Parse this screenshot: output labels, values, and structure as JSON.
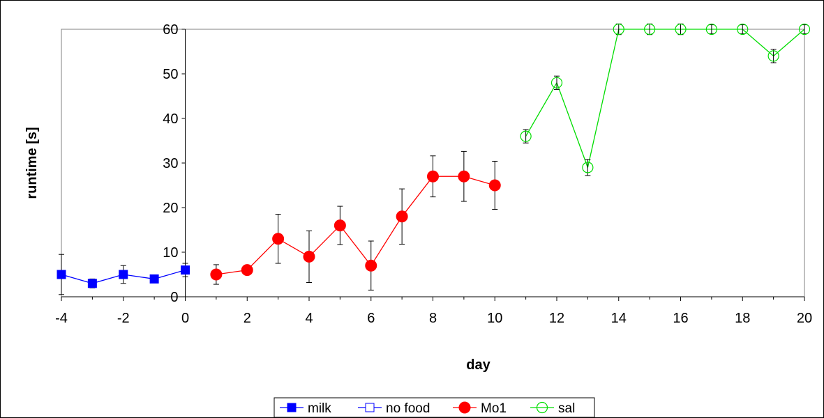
{
  "chart_data": {
    "type": "line",
    "title": "",
    "xlabel": "day",
    "ylabel": "runtime [s]",
    "xlim": [
      -4,
      20
    ],
    "ylim": [
      0,
      60
    ],
    "x_ticks": [
      "-4",
      "-2",
      "0",
      "2",
      "4",
      "6",
      "8",
      "10",
      "12",
      "14",
      "16",
      "18",
      "20"
    ],
    "y_ticks": [
      "0",
      "10",
      "20",
      "30",
      "40",
      "50",
      "60"
    ],
    "grid": false,
    "legend_position": "bottom",
    "series": [
      {
        "name": "milk",
        "color": "#0000ff",
        "marker": "filled-square",
        "points": [
          {
            "x": -4,
            "y": 5,
            "err": 4.5
          },
          {
            "x": -3,
            "y": 3,
            "err": 1
          },
          {
            "x": -2,
            "y": 5,
            "err": 2
          },
          {
            "x": -1,
            "y": 4,
            "err": 0
          },
          {
            "x": 0,
            "y": 6,
            "err": 1.5
          }
        ]
      },
      {
        "name": "no food",
        "color": "#0000ff",
        "marker": "open-square",
        "points": []
      },
      {
        "name": "Mo1",
        "color": "#ff0000",
        "marker": "filled-circle",
        "points": [
          {
            "x": 1,
            "y": 5,
            "err": 2.2
          },
          {
            "x": 2,
            "y": 6,
            "err": 0.8
          },
          {
            "x": 3,
            "y": 13,
            "err": 5.5
          },
          {
            "x": 4,
            "y": 9,
            "err": 5.8
          },
          {
            "x": 5,
            "y": 16,
            "err": 4.3
          },
          {
            "x": 6,
            "y": 7,
            "err": 5.5
          },
          {
            "x": 7,
            "y": 18,
            "err": 6.2
          },
          {
            "x": 8,
            "y": 27,
            "err": 4.6
          },
          {
            "x": 9,
            "y": 27,
            "err": 5.6
          },
          {
            "x": 10,
            "y": 25,
            "err": 5.4
          }
        ]
      },
      {
        "name": "sal",
        "color": "#00dd00",
        "marker": "open-circle",
        "points": [
          {
            "x": 11,
            "y": 36,
            "err": 1.5
          },
          {
            "x": 12,
            "y": 48,
            "err": 1.5
          },
          {
            "x": 13,
            "y": 29,
            "err": 1.8
          },
          {
            "x": 14,
            "y": 60,
            "err": 1.2
          },
          {
            "x": 15,
            "y": 60,
            "err": 1.2
          },
          {
            "x": 16,
            "y": 60,
            "err": 1.2
          },
          {
            "x": 17,
            "y": 60,
            "err": 1.0
          },
          {
            "x": 18,
            "y": 60,
            "err": 1.0
          },
          {
            "x": 19,
            "y": 54,
            "err": 1.5
          },
          {
            "x": 20,
            "y": 60,
            "err": 1.0
          }
        ]
      }
    ]
  }
}
